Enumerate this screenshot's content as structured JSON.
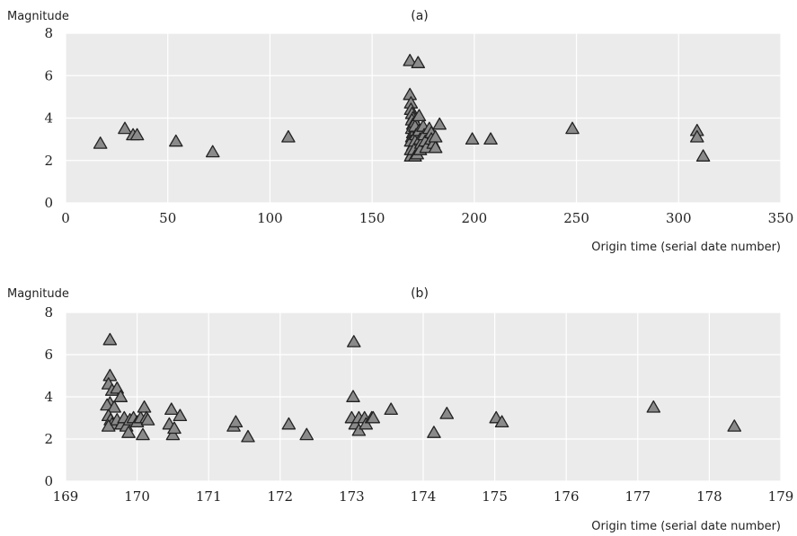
{
  "chart_data": [
    {
      "type": "scatter",
      "title": "(a)",
      "ylabel": "Magnitude",
      "xlabel": "Origin time (serial date number)",
      "xlim": [
        0,
        350
      ],
      "ylim": [
        0,
        8
      ],
      "xticks": [
        0,
        50,
        100,
        150,
        200,
        250,
        300,
        350
      ],
      "yticks": [
        0,
        2,
        4,
        6,
        8
      ],
      "grid": true,
      "marker": "triangle",
      "colors": {
        "marker_fill": "#8a8a8a",
        "marker_edge": "#222222",
        "panel_bg": "#ebebeb",
        "grid": "#ffffff"
      },
      "series": [
        {
          "points": [
            [
              17,
              2.8
            ],
            [
              29,
              3.5
            ],
            [
              33,
              3.2
            ],
            [
              35,
              3.2
            ],
            [
              54,
              2.9
            ],
            [
              72,
              2.4
            ],
            [
              109,
              3.1
            ],
            [
              168.5,
              6.7
            ],
            [
              172.5,
              6.6
            ],
            [
              168.5,
              5.1
            ],
            [
              169,
              4.7
            ],
            [
              169,
              4.4
            ],
            [
              169.5,
              4.2
            ],
            [
              170,
              4.0
            ],
            [
              169.5,
              3.9
            ],
            [
              170,
              3.7
            ],
            [
              169.5,
              3.5
            ],
            [
              170,
              3.3
            ],
            [
              169.5,
              3.1
            ],
            [
              169,
              2.9
            ],
            [
              170,
              2.7
            ],
            [
              169,
              2.5
            ],
            [
              169.5,
              2.3
            ],
            [
              169,
              2.2
            ],
            [
              171,
              3.8
            ],
            [
              171,
              3.6
            ],
            [
              171.5,
              3.2
            ],
            [
              171,
              2.9
            ],
            [
              170.5,
              2.5
            ],
            [
              171,
              2.2
            ],
            [
              172,
              2.3
            ],
            [
              173,
              4.1
            ],
            [
              173,
              3.4
            ],
            [
              173.5,
              3.0
            ],
            [
              174,
              2.8
            ],
            [
              173.5,
              2.5
            ],
            [
              175,
              3.6
            ],
            [
              175.5,
              3.2
            ],
            [
              176,
              2.9
            ],
            [
              176.5,
              2.6
            ],
            [
              178,
              3.5
            ],
            [
              179,
              3.3
            ],
            [
              179,
              3.0
            ],
            [
              180,
              2.8
            ],
            [
              181,
              2.6
            ],
            [
              181,
              3.1
            ],
            [
              183,
              3.7
            ],
            [
              199,
              3.0
            ],
            [
              208,
              3.0
            ],
            [
              248,
              3.5
            ],
            [
              309,
              3.4
            ],
            [
              309,
              3.1
            ],
            [
              312,
              2.2
            ]
          ]
        }
      ]
    },
    {
      "type": "scatter",
      "title": "(b)",
      "ylabel": "Magnitude",
      "xlabel": "Origin time (serial date number)",
      "xlim": [
        169,
        179
      ],
      "ylim": [
        0,
        8
      ],
      "xticks": [
        169,
        170,
        171,
        172,
        173,
        174,
        175,
        176,
        177,
        178,
        179
      ],
      "yticks": [
        0,
        2,
        4,
        6,
        8
      ],
      "grid": true,
      "marker": "triangle",
      "colors": {
        "marker_fill": "#8a8a8a",
        "marker_edge": "#222222",
        "panel_bg": "#ebebeb",
        "grid": "#ffffff"
      },
      "series": [
        {
          "points": [
            [
              169.62,
              6.7
            ],
            [
              169.62,
              5.0
            ],
            [
              169.6,
              4.6
            ],
            [
              169.65,
              4.3
            ],
            [
              169.72,
              4.4
            ],
            [
              169.77,
              4.0
            ],
            [
              169.62,
              3.7
            ],
            [
              169.58,
              3.6
            ],
            [
              169.68,
              3.5
            ],
            [
              169.6,
              3.1
            ],
            [
              169.63,
              2.9
            ],
            [
              169.65,
              2.7
            ],
            [
              169.6,
              2.6
            ],
            [
              169.72,
              2.9
            ],
            [
              169.78,
              2.7
            ],
            [
              169.82,
              3.0
            ],
            [
              169.85,
              2.6
            ],
            [
              169.9,
              2.9
            ],
            [
              169.95,
              3.0
            ],
            [
              169.88,
              2.3
            ],
            [
              170.0,
              2.8
            ],
            [
              170.05,
              3.0
            ],
            [
              170.1,
              3.5
            ],
            [
              170.13,
              3.0
            ],
            [
              170.08,
              2.2
            ],
            [
              170.15,
              2.9
            ],
            [
              170.45,
              2.7
            ],
            [
              170.48,
              3.4
            ],
            [
              170.5,
              2.2
            ],
            [
              170.52,
              2.5
            ],
            [
              170.6,
              3.1
            ],
            [
              171.35,
              2.6
            ],
            [
              171.38,
              2.8
            ],
            [
              171.55,
              2.1
            ],
            [
              172.12,
              2.7
            ],
            [
              172.37,
              2.2
            ],
            [
              173.03,
              6.6
            ],
            [
              173.02,
              4.0
            ],
            [
              173.0,
              3.0
            ],
            [
              173.05,
              2.7
            ],
            [
              173.1,
              3.0
            ],
            [
              173.1,
              2.4
            ],
            [
              173.18,
              3.0
            ],
            [
              173.2,
              2.7
            ],
            [
              173.28,
              3.0
            ],
            [
              173.3,
              3.0
            ],
            [
              173.55,
              3.4
            ],
            [
              174.15,
              2.3
            ],
            [
              174.33,
              3.2
            ],
            [
              175.02,
              3.0
            ],
            [
              175.1,
              2.8
            ],
            [
              177.22,
              3.5
            ],
            [
              178.35,
              2.6
            ]
          ]
        }
      ]
    }
  ]
}
